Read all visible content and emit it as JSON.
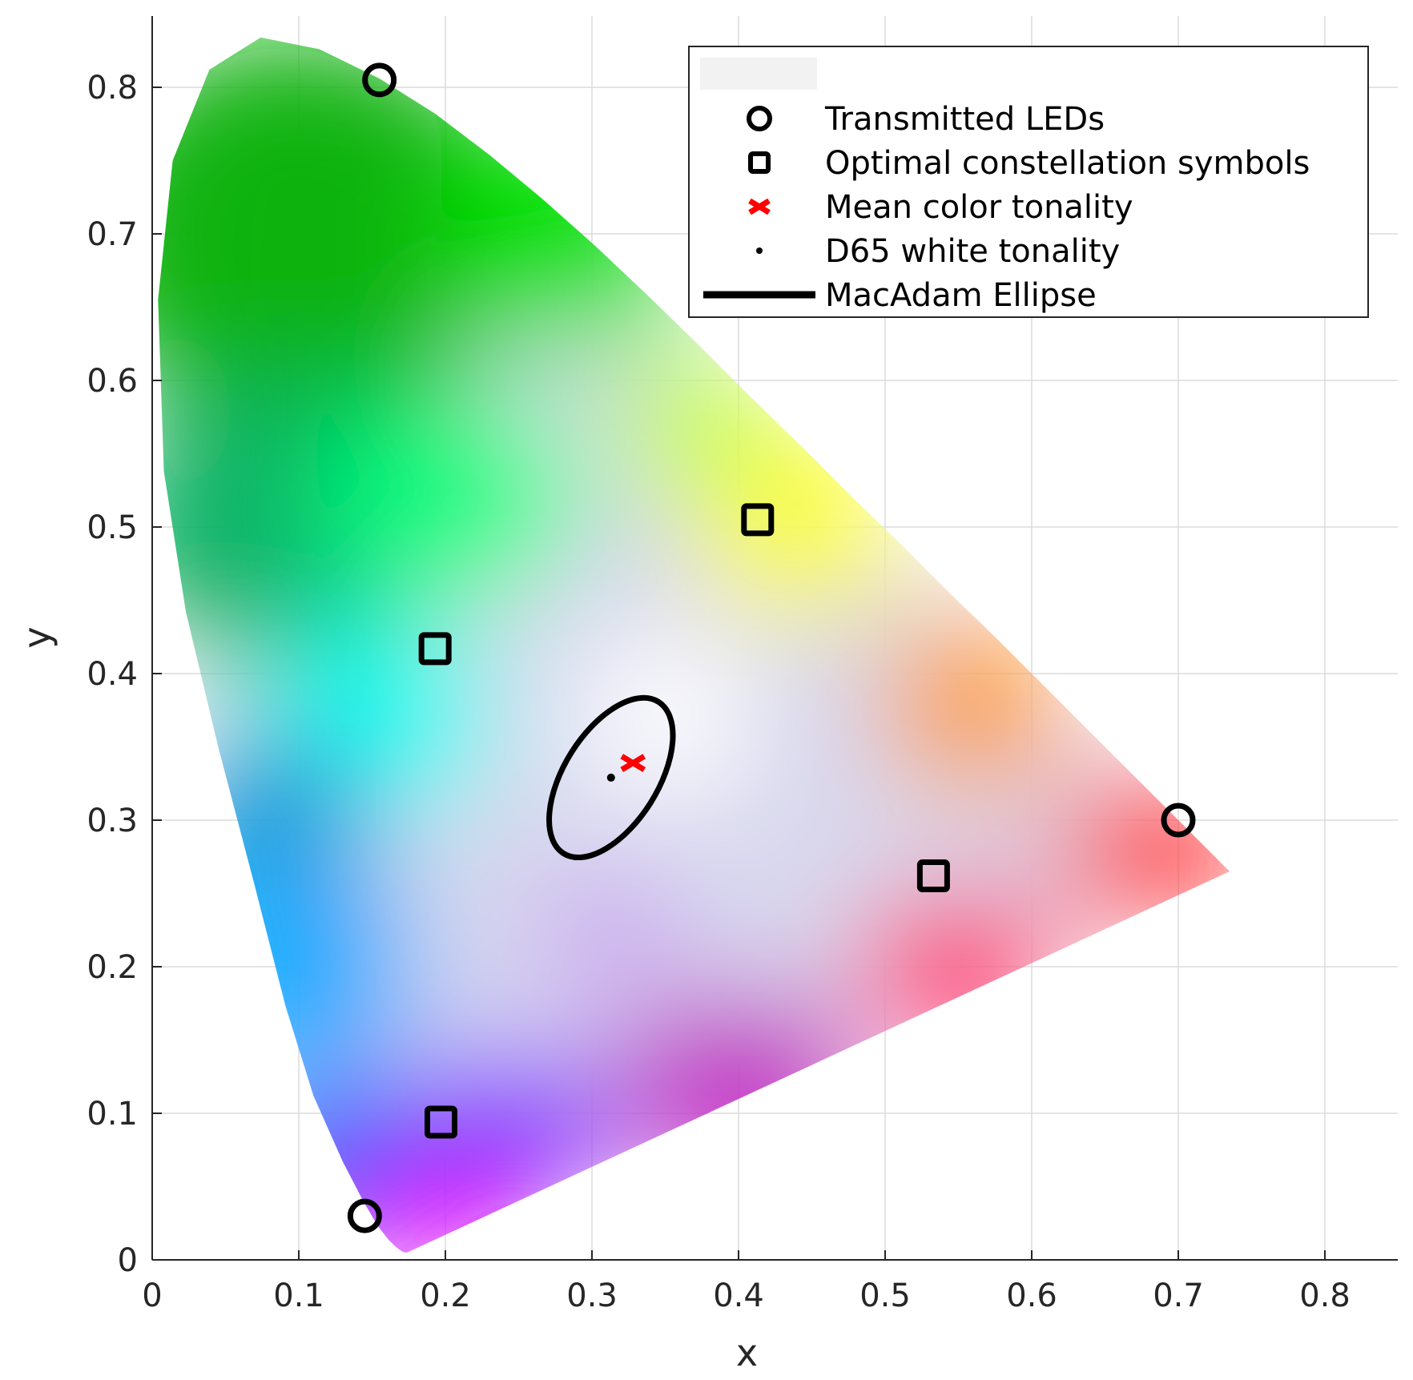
{
  "chart_data": {
    "type": "scatter",
    "title": "",
    "xlabel": "x",
    "ylabel": "y",
    "xlim": [
      0,
      0.85
    ],
    "ylim": [
      0,
      0.85
    ],
    "x_ticks": [
      "0",
      "0.1",
      "0.2",
      "0.3",
      "0.4",
      "0.5",
      "0.6",
      "0.7",
      "0.8"
    ],
    "y_ticks": [
      "0",
      "0.1",
      "0.2",
      "0.3",
      "0.4",
      "0.5",
      "0.6",
      "0.7",
      "0.8"
    ],
    "grid": true,
    "legend_position": "top-right",
    "background": "CIE 1931 chromaticity diagram",
    "gamut_boundary": [
      [
        0.174,
        0.005
      ],
      [
        0.172,
        0.005
      ],
      [
        0.17,
        0.006
      ],
      [
        0.166,
        0.009
      ],
      [
        0.161,
        0.014
      ],
      [
        0.154,
        0.023
      ],
      [
        0.144,
        0.04
      ],
      [
        0.13,
        0.067
      ],
      [
        0.11,
        0.112
      ],
      [
        0.091,
        0.173
      ],
      [
        0.07,
        0.255
      ],
      [
        0.045,
        0.35
      ],
      [
        0.023,
        0.442
      ],
      [
        0.008,
        0.538
      ],
      [
        0.004,
        0.655
      ],
      [
        0.014,
        0.75
      ],
      [
        0.039,
        0.812
      ],
      [
        0.074,
        0.834
      ],
      [
        0.114,
        0.826
      ],
      [
        0.155,
        0.806
      ],
      [
        0.193,
        0.782
      ],
      [
        0.23,
        0.754
      ],
      [
        0.266,
        0.724
      ],
      [
        0.302,
        0.692
      ],
      [
        0.337,
        0.659
      ],
      [
        0.373,
        0.624
      ],
      [
        0.408,
        0.589
      ],
      [
        0.444,
        0.554
      ],
      [
        0.479,
        0.519
      ],
      [
        0.512,
        0.487
      ],
      [
        0.545,
        0.454
      ],
      [
        0.576,
        0.424
      ],
      [
        0.607,
        0.393
      ],
      [
        0.636,
        0.364
      ],
      [
        0.663,
        0.337
      ],
      [
        0.688,
        0.312
      ],
      [
        0.71,
        0.29
      ],
      [
        0.725,
        0.275
      ],
      [
        0.735,
        0.265
      ]
    ],
    "gamut_colors": {
      "green_peak": "#00b000",
      "cyan": "#00ffee",
      "blue": "#0040ff",
      "violet": "#8000ff",
      "magenta": "#ff00ff",
      "red": "#ff0000",
      "orange": "#ff9900",
      "yellow": "#ffff00",
      "white": "#ffffff"
    },
    "series": [
      {
        "name": "Transmitted LEDs",
        "marker": "circle",
        "color": "#000000",
        "points": [
          [
            0.155,
            0.805
          ],
          [
            0.145,
            0.03
          ],
          [
            0.7,
            0.3
          ]
        ]
      },
      {
        "name": "Optimal constellation symbols",
        "marker": "square",
        "color": "#000000",
        "points": [
          [
            0.413,
            0.505
          ],
          [
            0.193,
            0.417
          ],
          [
            0.533,
            0.262
          ],
          [
            0.197,
            0.094
          ]
        ]
      },
      {
        "name": "Mean color tonality",
        "marker": "x",
        "color": "#ff0000",
        "points": [
          [
            0.328,
            0.339
          ]
        ]
      },
      {
        "name": "D65 white tonality",
        "marker": "dot",
        "color": "#000000",
        "points": [
          [
            0.313,
            0.329
          ]
        ]
      },
      {
        "name": "MacAdam Ellipse",
        "marker": "line",
        "color": "#000000",
        "ellipse": {
          "cx": 0.313,
          "cy": 0.329,
          "a": 0.061,
          "b": 0.032,
          "angle_deg": 58
        }
      }
    ]
  }
}
